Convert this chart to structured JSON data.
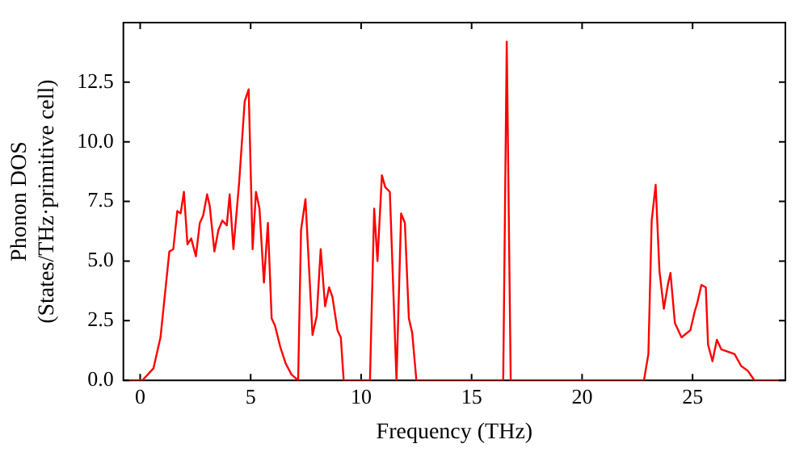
{
  "chart_data": {
    "type": "line",
    "xlabel": "Frequency (THz)",
    "ylabel": "Phonon DOS\n(States/THz·primitive cell)",
    "xlim": [
      -0.76,
      29.2
    ],
    "ylim": [
      0,
      15
    ],
    "xticks": [
      0,
      5,
      10,
      15,
      20,
      25
    ],
    "yticks": [
      {
        "value": 0,
        "label": "0.0"
      },
      2.5,
      {
        "value": 5,
        "label": "5.0"
      },
      7.5,
      {
        "value": 10,
        "label": "10.0"
      },
      12.5
    ],
    "grid": false,
    "legend": false,
    "marker": "none",
    "line_style": "solid",
    "series": [
      {
        "color": "#ff0000",
        "x": [
          -0.5,
          0.1,
          0.6,
          0.92,
          1.32,
          1.5,
          1.68,
          1.83,
          1.98,
          2.14,
          2.31,
          2.52,
          2.7,
          2.85,
          3.03,
          3.15,
          3.36,
          3.54,
          3.72,
          3.92,
          4.05,
          4.22,
          4.48,
          4.73,
          4.91,
          5.09,
          5.24,
          5.4,
          5.6,
          5.78,
          5.95,
          6.1,
          6.34,
          6.59,
          6.85,
          7.15,
          7.28,
          7.48,
          7.8,
          7.99,
          8.17,
          8.37,
          8.55,
          8.7,
          8.93,
          9.08,
          9.21,
          10.4,
          10.59,
          10.74,
          10.94,
          11.09,
          11.3,
          11.6,
          11.81,
          11.98,
          12.16,
          12.31,
          12.5,
          16.43,
          16.59,
          16.77,
          22.8,
          23.0,
          23.15,
          23.33,
          23.5,
          23.7,
          23.9,
          24.0,
          24.2,
          24.5,
          24.9,
          25.1,
          25.2,
          25.4,
          25.6,
          25.7,
          25.9,
          26.1,
          26.3,
          26.9,
          27.2,
          27.5,
          27.8,
          28.9
        ],
        "values": [
          0,
          0,
          0.5,
          1.8,
          5.4,
          5.5,
          7.1,
          7.0,
          7.9,
          5.7,
          5.95,
          5.2,
          6.6,
          6.9,
          7.8,
          7.3,
          5.4,
          6.3,
          6.7,
          6.5,
          7.8,
          5.5,
          8.3,
          11.7,
          12.2,
          5.5,
          7.9,
          7.2,
          4.1,
          6.6,
          2.6,
          2.3,
          1.4,
          0.7,
          0.24,
          0,
          6.3,
          7.6,
          1.9,
          2.7,
          5.5,
          3.1,
          3.9,
          3.5,
          2.1,
          1.8,
          0,
          0,
          7.2,
          5.0,
          8.6,
          8.1,
          7.9,
          0,
          7.0,
          6.6,
          2.6,
          2.0,
          0,
          0,
          14.2,
          0,
          0,
          1.1,
          6.7,
          8.2,
          4.6,
          3.0,
          4.1,
          4.5,
          2.4,
          1.8,
          2.1,
          2.9,
          3.2,
          4.0,
          3.9,
          1.5,
          0.8,
          1.7,
          1.3,
          1.1,
          0.6,
          0.4,
          0,
          0
        ]
      }
    ]
  }
}
